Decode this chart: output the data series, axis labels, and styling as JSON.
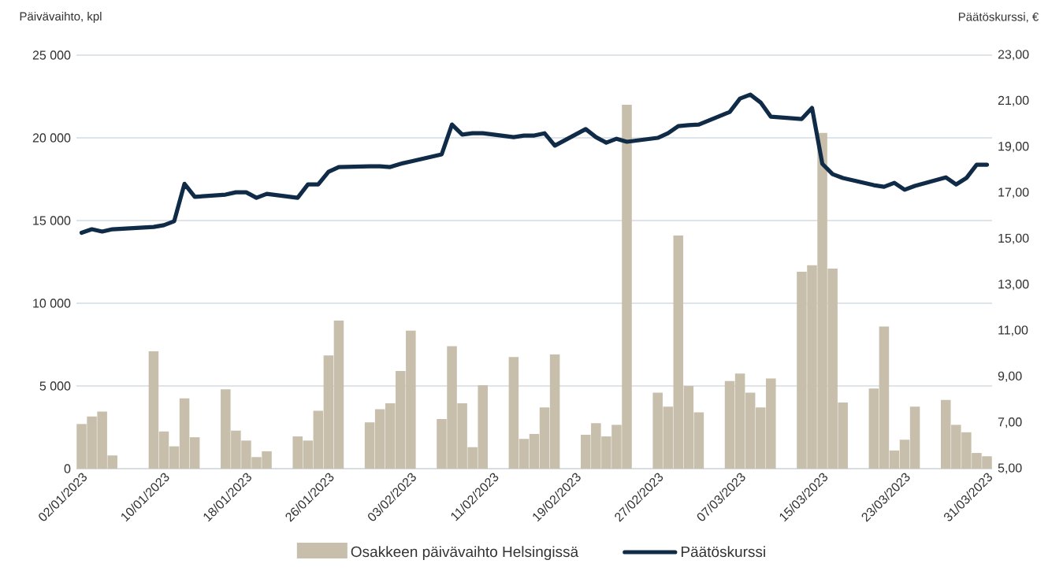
{
  "chart_data": {
    "type": "bar",
    "ylabel": "Päivävaihto, kpl",
    "y2label": "Päätöskurssi, €",
    "x": [
      "2023-01-02",
      "2023-01-03",
      "2023-01-04",
      "2023-01-05",
      "2023-01-09",
      "2023-01-10",
      "2023-01-11",
      "2023-01-12",
      "2023-01-13",
      "2023-01-16",
      "2023-01-17",
      "2023-01-18",
      "2023-01-19",
      "2023-01-20",
      "2023-01-23",
      "2023-01-24",
      "2023-01-25",
      "2023-01-26",
      "2023-01-27",
      "2023-01-30",
      "2023-01-31",
      "2023-02-01",
      "2023-02-02",
      "2023-02-03",
      "2023-02-06",
      "2023-02-07",
      "2023-02-08",
      "2023-02-09",
      "2023-02-10",
      "2023-02-13",
      "2023-02-14",
      "2023-02-15",
      "2023-02-16",
      "2023-02-17",
      "2023-02-20",
      "2023-02-21",
      "2023-02-22",
      "2023-02-23",
      "2023-02-24",
      "2023-02-27",
      "2023-02-28",
      "2023-03-01",
      "2023-03-02",
      "2023-03-03",
      "2023-03-06",
      "2023-03-07",
      "2023-03-08",
      "2023-03-09",
      "2023-03-10",
      "2023-03-13",
      "2023-03-14",
      "2023-03-15",
      "2023-03-16",
      "2023-03-17",
      "2023-03-20",
      "2023-03-21",
      "2023-03-22",
      "2023-03-23",
      "2023-03-24",
      "2023-03-27",
      "2023-03-28",
      "2023-03-29",
      "2023-03-30",
      "2023-03-31"
    ],
    "series": [
      {
        "name": "Osakkeen päivävaihto Helsingissä",
        "color": "#c7bfab",
        "values": [
          2700,
          3150,
          3450,
          800,
          7100,
          2250,
          1350,
          4250,
          1900,
          4800,
          2300,
          1700,
          700,
          1050,
          1950,
          1700,
          3500,
          6850,
          8950,
          2800,
          3600,
          3950,
          5900,
          8350,
          3000,
          7400,
          3950,
          1300,
          5050,
          6750,
          1800,
          2100,
          3700,
          6900,
          2050,
          2750,
          1950,
          2650,
          22000,
          4600,
          3750,
          14100,
          5000,
          3400,
          5300,
          5750,
          4600,
          3700,
          5450,
          11900,
          12300,
          20300,
          12100,
          4000,
          4850,
          8600,
          1100,
          1750,
          3750,
          4150,
          2650,
          2200,
          950,
          750
        ]
      },
      {
        "name": "Päätöskurssi",
        "type": "line",
        "axis": "y2",
        "color": "#0f2b47",
        "values": [
          15.27,
          15.42,
          15.32,
          15.42,
          15.52,
          15.6,
          15.77,
          17.4,
          16.83,
          16.93,
          17.03,
          17.03,
          16.79,
          16.96,
          16.79,
          17.37,
          17.37,
          17.92,
          18.13,
          18.16,
          18.16,
          18.13,
          18.27,
          18.37,
          18.68,
          19.98,
          19.54,
          19.6,
          19.6,
          19.43,
          19.5,
          19.5,
          19.6,
          19.06,
          19.78,
          19.43,
          19.19,
          19.36,
          19.23,
          19.4,
          19.6,
          19.91,
          19.95,
          19.98,
          20.53,
          21.11,
          21.28,
          20.94,
          20.32,
          20.22,
          20.7,
          18.27,
          17.82,
          17.65,
          17.34,
          17.27,
          17.44,
          17.14,
          17.31,
          17.68,
          17.37,
          17.65,
          18.23,
          18.23
        ]
      }
    ],
    "xlim": [
      "2023-01-01T12:00",
      "2023-03-31T12:00"
    ],
    "xticks": [
      {
        "value": "2023-01-02",
        "label": "02/01/2023"
      },
      {
        "value": "2023-01-10",
        "label": "10/01/2023"
      },
      {
        "value": "2023-01-18",
        "label": "18/01/2023"
      },
      {
        "value": "2023-01-26",
        "label": "26/01/2023"
      },
      {
        "value": "2023-02-03",
        "label": "03/02/2023"
      },
      {
        "value": "2023-02-11",
        "label": "11/02/2023"
      },
      {
        "value": "2023-02-19",
        "label": "19/02/2023"
      },
      {
        "value": "2023-02-27",
        "label": "27/02/2023"
      },
      {
        "value": "2023-03-07",
        "label": "07/03/2023"
      },
      {
        "value": "2023-03-15",
        "label": "15/03/2023"
      },
      {
        "value": "2023-03-23",
        "label": "23/03/2023"
      },
      {
        "value": "2023-03-31",
        "label": "31/03/2023"
      }
    ],
    "ylim": [
      0,
      25000
    ],
    "yticks": [
      {
        "value": 0,
        "label": "0"
      },
      {
        "value": 5000,
        "label": "5 000"
      },
      {
        "value": 10000,
        "label": "10 000"
      },
      {
        "value": 15000,
        "label": "15 000"
      },
      {
        "value": 20000,
        "label": "20 000"
      },
      {
        "value": 25000,
        "label": "25 000"
      }
    ],
    "y2lim": [
      5,
      23
    ],
    "y2ticks": [
      {
        "value": 5,
        "label": "5,00"
      },
      {
        "value": 7,
        "label": "7,00"
      },
      {
        "value": 9,
        "label": "9,00"
      },
      {
        "value": 11,
        "label": "11,00"
      },
      {
        "value": 13,
        "label": "13,00"
      },
      {
        "value": 15,
        "label": "15,00"
      },
      {
        "value": 17,
        "label": "17,00"
      },
      {
        "value": 19,
        "label": "19,00"
      },
      {
        "value": 21,
        "label": "21,00"
      },
      {
        "value": 23,
        "label": "23,00"
      }
    ],
    "grid": "y",
    "legend": "bottom"
  }
}
